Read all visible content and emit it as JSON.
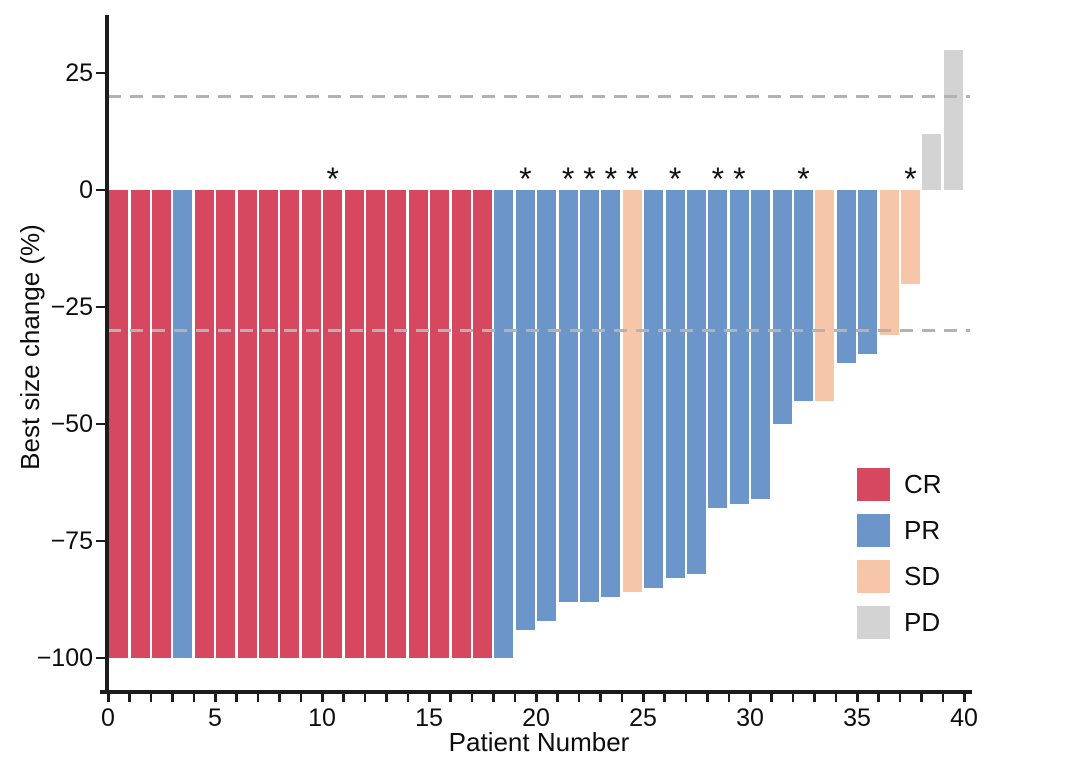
{
  "figure": {
    "background": "#ffffff",
    "significance_marker": "*"
  },
  "chart_data": {
    "type": "bar",
    "title": "",
    "xlabel": "Patient Number",
    "ylabel": "Best size change (%)",
    "xlim": [
      0,
      40
    ],
    "ylim": [
      -107,
      37
    ],
    "grid": false,
    "x_ticks_labeled": [
      0,
      5,
      10,
      15,
      20,
      25,
      30,
      35,
      40
    ],
    "x_minor_tick_every": 1,
    "y_ticks": [
      {
        "value": 25,
        "label": "25"
      },
      {
        "value": 0,
        "label": "0"
      },
      {
        "value": -25,
        "label": "−25"
      },
      {
        "value": -50,
        "label": "−50"
      },
      {
        "value": -75,
        "label": "−75"
      },
      {
        "value": -100,
        "label": "−100"
      }
    ],
    "threshold_lines": [
      {
        "value": 20,
        "style": "dashed",
        "color": "#b3b3b3"
      },
      {
        "value": -30,
        "style": "dashed",
        "color": "#b3b3b3"
      }
    ],
    "legend": {
      "position": "right-middle",
      "entries": [
        {
          "label": "CR",
          "color": "#d5485f"
        },
        {
          "label": "PR",
          "color": "#6c96c9"
        },
        {
          "label": "SD",
          "color": "#f7c5a8"
        },
        {
          "label": "PD",
          "color": "#d3d3d3"
        }
      ]
    },
    "bars": [
      {
        "patient": 1,
        "value": -100,
        "response": "CR",
        "significant": false
      },
      {
        "patient": 2,
        "value": -100,
        "response": "CR",
        "significant": false
      },
      {
        "patient": 3,
        "value": -100,
        "response": "CR",
        "significant": false
      },
      {
        "patient": 4,
        "value": -100,
        "response": "PR",
        "significant": false
      },
      {
        "patient": 5,
        "value": -100,
        "response": "CR",
        "significant": false
      },
      {
        "patient": 6,
        "value": -100,
        "response": "CR",
        "significant": false
      },
      {
        "patient": 7,
        "value": -100,
        "response": "CR",
        "significant": false
      },
      {
        "patient": 8,
        "value": -100,
        "response": "CR",
        "significant": false
      },
      {
        "patient": 9,
        "value": -100,
        "response": "CR",
        "significant": false
      },
      {
        "patient": 10,
        "value": -100,
        "response": "CR",
        "significant": false
      },
      {
        "patient": 11,
        "value": -100,
        "response": "CR",
        "significant": true
      },
      {
        "patient": 12,
        "value": -100,
        "response": "CR",
        "significant": false
      },
      {
        "patient": 13,
        "value": -100,
        "response": "CR",
        "significant": false
      },
      {
        "patient": 14,
        "value": -100,
        "response": "CR",
        "significant": false
      },
      {
        "patient": 15,
        "value": -100,
        "response": "CR",
        "significant": false
      },
      {
        "patient": 16,
        "value": -100,
        "response": "CR",
        "significant": false
      },
      {
        "patient": 17,
        "value": -100,
        "response": "CR",
        "significant": false
      },
      {
        "patient": 18,
        "value": -100,
        "response": "CR",
        "significant": false
      },
      {
        "patient": 19,
        "value": -100,
        "response": "PR",
        "significant": false
      },
      {
        "patient": 20,
        "value": -94,
        "response": "PR",
        "significant": true
      },
      {
        "patient": 21,
        "value": -92,
        "response": "PR",
        "significant": false
      },
      {
        "patient": 22,
        "value": -88,
        "response": "PR",
        "significant": true
      },
      {
        "patient": 23,
        "value": -88,
        "response": "PR",
        "significant": true
      },
      {
        "patient": 24,
        "value": -87,
        "response": "PR",
        "significant": true
      },
      {
        "patient": 25,
        "value": -86,
        "response": "SD",
        "significant": true
      },
      {
        "patient": 26,
        "value": -85,
        "response": "PR",
        "significant": false
      },
      {
        "patient": 27,
        "value": -83,
        "response": "PR",
        "significant": true
      },
      {
        "patient": 28,
        "value": -82,
        "response": "PR",
        "significant": false
      },
      {
        "patient": 29,
        "value": -68,
        "response": "PR",
        "significant": true
      },
      {
        "patient": 30,
        "value": -67,
        "response": "PR",
        "significant": true
      },
      {
        "patient": 31,
        "value": -66,
        "response": "PR",
        "significant": false
      },
      {
        "patient": 32,
        "value": -50,
        "response": "PR",
        "significant": false
      },
      {
        "patient": 33,
        "value": -45,
        "response": "PR",
        "significant": true
      },
      {
        "patient": 34,
        "value": -45,
        "response": "SD",
        "significant": false
      },
      {
        "patient": 35,
        "value": -37,
        "response": "PR",
        "significant": false
      },
      {
        "patient": 36,
        "value": -35,
        "response": "PR",
        "significant": false
      },
      {
        "patient": 37,
        "value": -31,
        "response": "SD",
        "significant": false
      },
      {
        "patient": 38,
        "value": -20,
        "response": "SD",
        "significant": true
      },
      {
        "patient": 39,
        "value": 12,
        "response": "PD",
        "significant": false
      },
      {
        "patient": 40,
        "value": 30,
        "response": "PD",
        "significant": false
      }
    ]
  }
}
